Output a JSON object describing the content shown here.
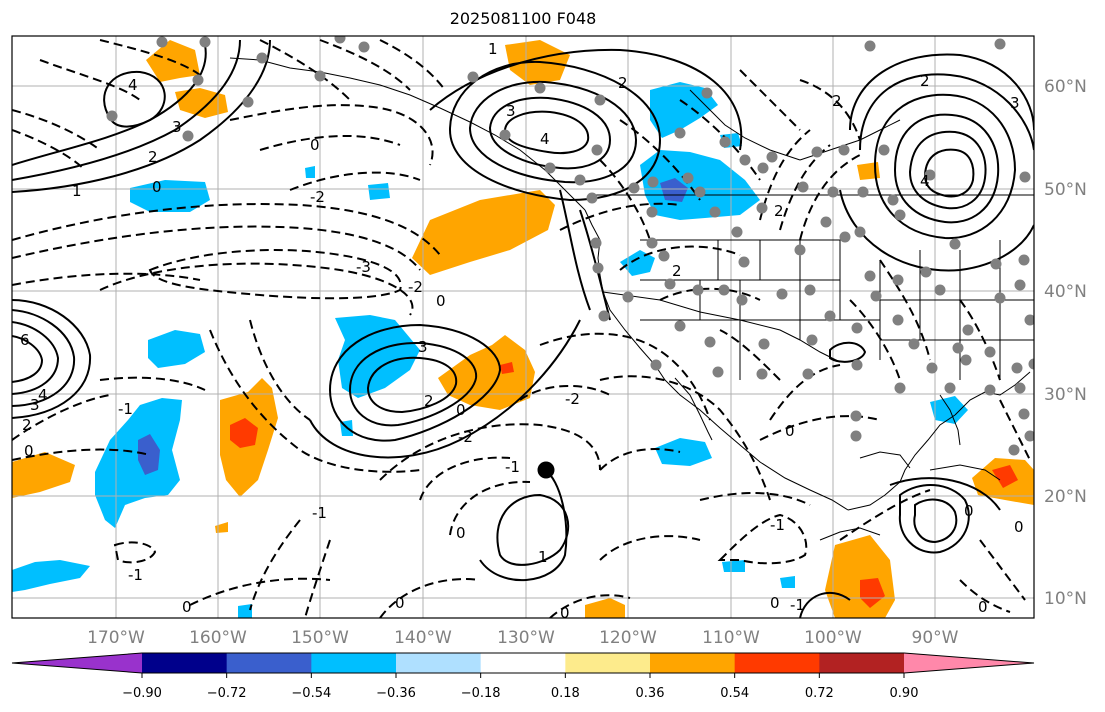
{
  "title": "2025081100 F048",
  "latitude_labels": [
    "60°N",
    "50°N",
    "40°N",
    "30°N",
    "20°N",
    "10°N"
  ],
  "longitude_labels": [
    "170°W",
    "160°W",
    "150°W",
    "140°W",
    "130°W",
    "120°W",
    "110°W",
    "100°W",
    "90°W"
  ],
  "colorbar": {
    "tick_labels": [
      "−0.90",
      "−0.72",
      "−0.54",
      "−0.36",
      "−0.18",
      "0.18",
      "0.36",
      "0.54",
      "0.72",
      "0.90"
    ],
    "colors": [
      "#9932cc",
      "#00008b",
      "#3a5fcd",
      "#00bfff",
      "#afe0ff",
      "#ffffff",
      "#fdeb8c",
      "#ffa500",
      "#ff3a00",
      "#b22222",
      "#ff88aa"
    ]
  },
  "colors": {
    "neg_strong": "#3a5fcd",
    "neg_mid": "#00bfff",
    "pos_mid": "#ffa500",
    "pos_strong": "#ff3a00",
    "contour": "#000000",
    "stations": "#808080",
    "grid": "#b0b0b0"
  },
  "contour_labels": [
    "4",
    "3",
    "2",
    "1",
    "0",
    "-1",
    "-2",
    "-3",
    "6"
  ],
  "marker": "storm-center"
}
